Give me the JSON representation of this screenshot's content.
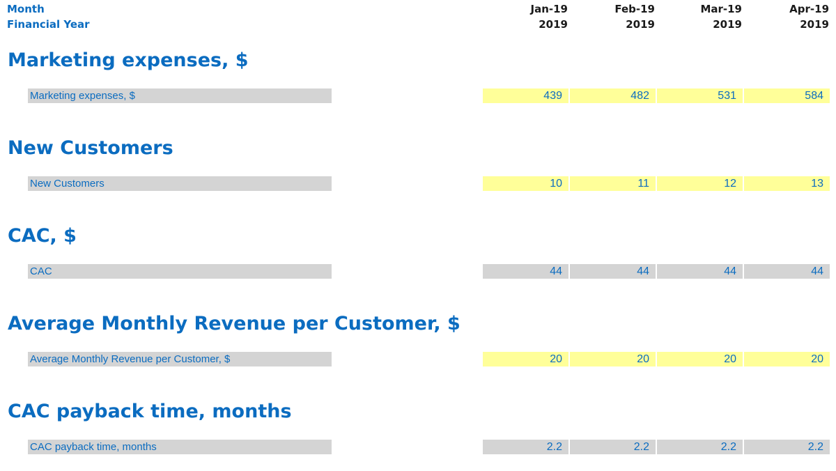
{
  "header": {
    "row1_label": "Month",
    "row2_label": "Financial Year",
    "columns": [
      {
        "month": "Jan-19",
        "year": "2019"
      },
      {
        "month": "Feb-19",
        "year": "2019"
      },
      {
        "month": "Mar-19",
        "year": "2019"
      },
      {
        "month": "Apr-19",
        "year": "2019"
      }
    ]
  },
  "sections": [
    {
      "title": "Marketing expenses, $",
      "row_label": "Marketing expenses, $",
      "cell_style": "input",
      "values": [
        "439",
        "482",
        "531",
        "584"
      ]
    },
    {
      "title": "New Customers",
      "row_label": "New Customers",
      "cell_style": "input",
      "values": [
        "10",
        "11",
        "12",
        "13"
      ]
    },
    {
      "title": "CAC, $",
      "row_label": "CAC",
      "cell_style": "calc",
      "values": [
        "44",
        "44",
        "44",
        "44"
      ]
    },
    {
      "title": "Average Monthly Revenue per Customer, $",
      "row_label": "Average Monthly Revenue per Customer, $",
      "cell_style": "input",
      "values": [
        "20",
        "20",
        "20",
        "20"
      ]
    },
    {
      "title": "CAC payback time, months",
      "row_label": "CAC payback time, months",
      "cell_style": "calc",
      "values": [
        "2.2",
        "2.2",
        "2.2",
        "2.2"
      ]
    }
  ],
  "colors": {
    "text_blue": "#0b6cc0",
    "input_fill": "#ffff99",
    "calc_fill": "#d4d4d4"
  }
}
